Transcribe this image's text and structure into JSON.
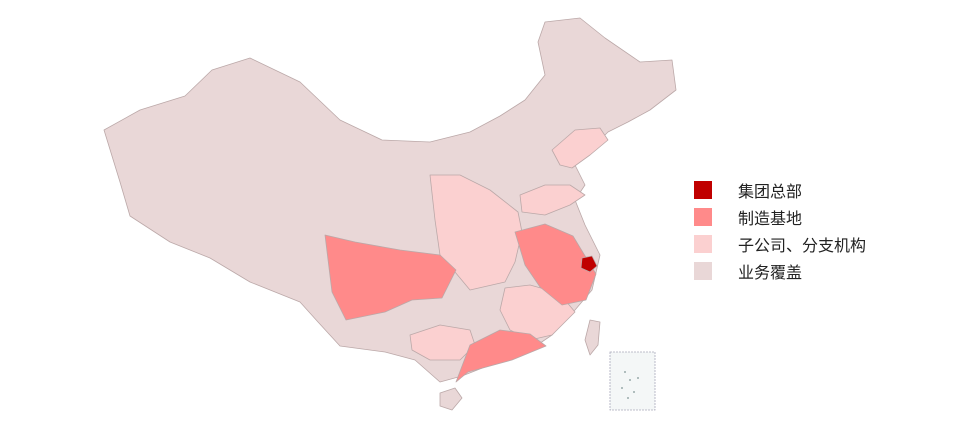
{
  "legend": {
    "items": [
      {
        "label": "集团总部",
        "color": "#c00000"
      },
      {
        "label": "制造基地",
        "color": "#ff8a8a"
      },
      {
        "label": "子公司、分支机构",
        "color": "#fbd0d0"
      },
      {
        "label": "业务覆盖",
        "color": "#e9d7d7"
      }
    ]
  },
  "map": {
    "regions": {
      "headquarters": [
        "Shanghai"
      ],
      "manufacturing": [
        "Sichuan",
        "Jiangsu",
        "Zhejiang",
        "Anhui",
        "Guangdong"
      ],
      "subsidiaries": [
        "Liaoning",
        "Shandong",
        "Henan",
        "Hubei",
        "Shaanxi",
        "Jiangxi",
        "Fujian",
        "Guangxi",
        "Hunan"
      ]
    },
    "border_color": "#b9a9a9"
  }
}
